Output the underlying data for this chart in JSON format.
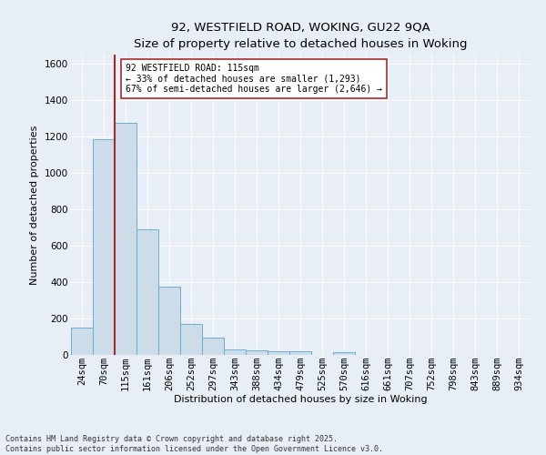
{
  "title": "92, WESTFIELD ROAD, WOKING, GU22 9QA",
  "subtitle": "Size of property relative to detached houses in Woking",
  "xlabel": "Distribution of detached houses by size in Woking",
  "ylabel": "Number of detached properties",
  "bar_labels": [
    "24sqm",
    "70sqm",
    "115sqm",
    "161sqm",
    "206sqm",
    "252sqm",
    "297sqm",
    "343sqm",
    "388sqm",
    "434sqm",
    "479sqm",
    "525sqm",
    "570sqm",
    "616sqm",
    "661sqm",
    "707sqm",
    "752sqm",
    "798sqm",
    "843sqm",
    "889sqm",
    "934sqm"
  ],
  "bar_values": [
    150,
    1185,
    1275,
    690,
    375,
    170,
    95,
    32,
    27,
    20,
    18,
    0,
    13,
    0,
    0,
    0,
    0,
    0,
    0,
    0,
    0
  ],
  "bar_color": "#ccdce8",
  "bar_edgecolor": "#6aaed6",
  "vline_color": "#a52a2a",
  "ylim": [
    0,
    1650
  ],
  "yticks": [
    0,
    200,
    400,
    600,
    800,
    1000,
    1200,
    1400,
    1600
  ],
  "annotation_text": "92 WESTFIELD ROAD: 115sqm\n← 33% of detached houses are smaller (1,293)\n67% of semi-detached houses are larger (2,646) →",
  "annotation_box_facecolor": "#ffffff",
  "annotation_box_edgecolor": "#a52a2a",
  "footer_line1": "Contains HM Land Registry data © Crown copyright and database right 2025.",
  "footer_line2": "Contains public sector information licensed under the Open Government Licence v3.0.",
  "bg_color": "#e8eef5",
  "plot_bg_color": "#e8eef5",
  "grid_color": "#ffffff",
  "title_fontsize": 9.5,
  "ylabel_fontsize": 8,
  "xlabel_fontsize": 8,
  "tick_fontsize": 7.5,
  "annotation_fontsize": 7,
  "footer_fontsize": 6
}
